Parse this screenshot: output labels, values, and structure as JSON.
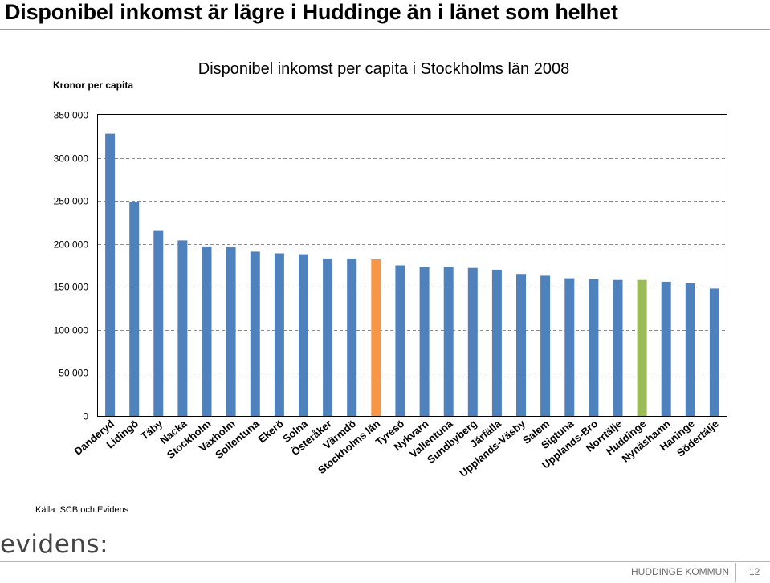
{
  "page": {
    "title": "Disponibel inkomst är lägre i Huddinge än i länet som helhet",
    "source": "Källa: SCB och Evidens",
    "logo_text": "evidens:",
    "footer_org": "HUDDINGE KOMMUN",
    "page_number": "12"
  },
  "chart_data": {
    "type": "bar",
    "title": "Disponibel inkomst per capita i Stockholms län 2008",
    "ylabel": "Kronor per capita",
    "xlabel": "",
    "ylim": [
      0,
      350000
    ],
    "ytick_values": [
      0,
      50000,
      100000,
      150000,
      200000,
      250000,
      300000,
      350000
    ],
    "ytick_labels": [
      "0",
      "50 000",
      "100 000",
      "150 000",
      "200 000",
      "250 000",
      "300 000",
      "350 000"
    ],
    "grid": "horizontal dashed",
    "categories": [
      "Danderyd",
      "Lidingö",
      "Täby",
      "Nacka",
      "Stockholm",
      "Vaxholm",
      "Sollentuna",
      "Ekerö",
      "Solna",
      "Österåker",
      "Värmdö",
      "Stockholms län",
      "Tyresö",
      "Nykvarn",
      "Vallentuna",
      "Sundbyberg",
      "Järfälla",
      "Upplands-Väsby",
      "Salem",
      "Sigtuna",
      "Upplands-Bro",
      "Norrtälje",
      "Huddinge",
      "Nynäshamn",
      "Haninge",
      "Södertälje"
    ],
    "values": [
      328000,
      249000,
      215000,
      204000,
      197000,
      196000,
      191000,
      189000,
      188000,
      183000,
      183000,
      182000,
      175000,
      173000,
      173000,
      172000,
      170000,
      165000,
      163000,
      160000,
      159000,
      158000,
      158000,
      156000,
      154000,
      148000
    ],
    "colors": {
      "default": "#4f81bd",
      "Stockholms län": "#f79646",
      "Huddinge": "#9bbb59"
    }
  }
}
